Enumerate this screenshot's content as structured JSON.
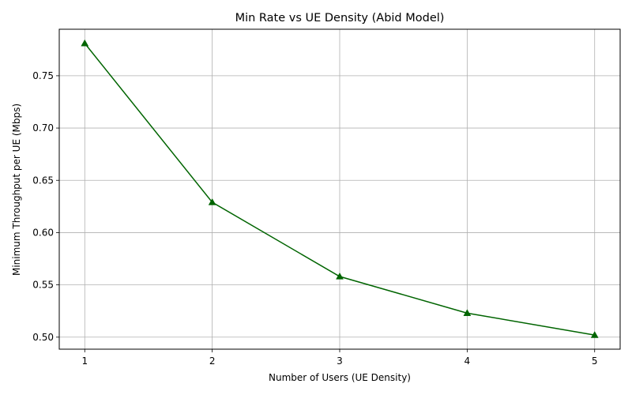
{
  "chart_data": {
    "type": "line",
    "title": "Min Rate vs UE Density (Abid Model)",
    "xlabel": "Number of Users (UE Density)",
    "ylabel": "Minimum Throughput per UE (Mbps)",
    "x": [
      1,
      2,
      3,
      4,
      5
    ],
    "series": [
      {
        "values": [
          0.781,
          0.629,
          0.558,
          0.523,
          0.502
        ]
      }
    ],
    "xticks": [
      1,
      2,
      3,
      4,
      5
    ],
    "yticks": [
      0.5,
      0.55,
      0.6,
      0.65,
      0.7,
      0.75
    ],
    "xlim": [
      0.8,
      5.2
    ],
    "ylim": [
      0.4885,
      0.7945
    ],
    "grid": true,
    "marker": "triangle",
    "color": "#006400"
  }
}
